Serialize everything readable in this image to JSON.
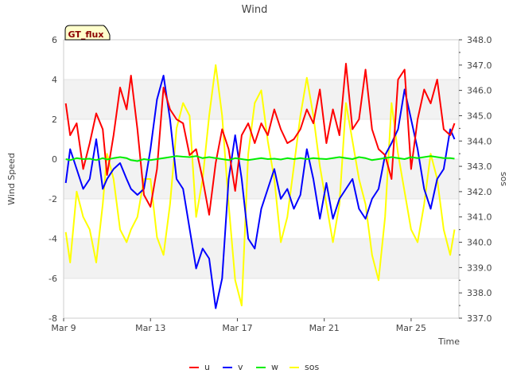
{
  "chart_data": {
    "type": "line",
    "title": "Wind",
    "xlabel": "Time",
    "ylabel": "Wind Speed",
    "y2label": "sos",
    "station_badge": "GT_flux",
    "x_ticks": [
      "Mar 9",
      "Mar 13",
      "Mar 17",
      "Mar 21",
      "Mar 25"
    ],
    "x_tick_days": [
      9,
      13,
      17,
      21,
      25
    ],
    "xlim_days": [
      9,
      27.2
    ],
    "ylim": [
      -8,
      6
    ],
    "y_ticks": [
      -8,
      -6,
      -4,
      -2,
      0,
      2,
      4,
      6
    ],
    "y2lim": [
      337.0,
      348.0
    ],
    "y2_ticks": [
      "337.0",
      "338.0",
      "339.0",
      "340.0",
      "341.0",
      "342.0",
      "343.0",
      "344.0",
      "345.0",
      "346.0",
      "347.0",
      "348.0"
    ],
    "legend_position": "bottom",
    "grid": "alternating horizontal bands",
    "series": [
      {
        "name": "u",
        "color": "#ff0000",
        "axis": "left",
        "x_days": [
          9.1,
          9.3,
          9.6,
          9.9,
          10.2,
          10.5,
          10.8,
          11.0,
          11.3,
          11.6,
          11.9,
          12.1,
          12.4,
          12.7,
          13.0,
          13.3,
          13.6,
          13.9,
          14.2,
          14.5,
          14.8,
          15.1,
          15.4,
          15.7,
          16.0,
          16.3,
          16.6,
          16.9,
          17.2,
          17.5,
          17.8,
          18.1,
          18.4,
          18.7,
          19.0,
          19.3,
          19.6,
          19.9,
          20.2,
          20.5,
          20.8,
          21.1,
          21.4,
          21.7,
          22.0,
          22.3,
          22.6,
          22.9,
          23.2,
          23.5,
          23.8,
          24.1,
          24.4,
          24.7,
          25.0,
          25.3,
          25.6,
          25.9,
          26.2,
          26.5,
          26.8,
          27.0
        ],
        "values": [
          2.8,
          1.2,
          1.8,
          -0.5,
          0.8,
          2.3,
          1.5,
          -0.8,
          1.2,
          3.6,
          2.5,
          4.2,
          1.5,
          -1.8,
          -2.4,
          -0.5,
          3.6,
          2.5,
          2.0,
          1.8,
          0.2,
          0.5,
          -1.0,
          -2.8,
          -0.2,
          1.5,
          0.5,
          -1.6,
          1.2,
          1.8,
          0.8,
          1.8,
          1.2,
          2.5,
          1.5,
          0.8,
          1.0,
          1.5,
          2.5,
          1.8,
          3.5,
          0.8,
          2.5,
          1.2,
          4.8,
          1.5,
          2.0,
          4.5,
          1.5,
          0.5,
          0.2,
          -1.0,
          4.0,
          4.5,
          -0.5,
          2.0,
          3.5,
          2.8,
          4.0,
          1.5,
          1.2,
          1.8
        ]
      },
      {
        "name": "v",
        "color": "#0000ff",
        "axis": "left",
        "x_days": [
          9.1,
          9.3,
          9.6,
          9.9,
          10.2,
          10.5,
          10.8,
          11.0,
          11.3,
          11.6,
          11.9,
          12.1,
          12.4,
          12.7,
          13.0,
          13.3,
          13.6,
          13.9,
          14.2,
          14.5,
          14.8,
          15.1,
          15.4,
          15.7,
          16.0,
          16.3,
          16.6,
          16.9,
          17.2,
          17.5,
          17.8,
          18.1,
          18.4,
          18.7,
          19.0,
          19.3,
          19.6,
          19.9,
          20.2,
          20.5,
          20.8,
          21.1,
          21.4,
          21.7,
          22.0,
          22.3,
          22.6,
          22.9,
          23.2,
          23.5,
          23.8,
          24.1,
          24.4,
          24.7,
          25.0,
          25.3,
          25.6,
          25.9,
          26.2,
          26.5,
          26.8,
          27.0
        ],
        "values": [
          -1.2,
          0.5,
          -0.5,
          -1.5,
          -1.0,
          1.0,
          -1.5,
          -1.0,
          -0.5,
          -0.2,
          -1.0,
          -1.5,
          -1.8,
          -1.5,
          0.5,
          3.0,
          4.2,
          2.0,
          -1.0,
          -1.5,
          -3.5,
          -5.5,
          -4.5,
          -5.0,
          -7.5,
          -6.0,
          -1.0,
          1.2,
          -1.0,
          -4.0,
          -4.5,
          -2.5,
          -1.5,
          -0.5,
          -2.0,
          -1.5,
          -2.5,
          -1.8,
          0.5,
          -1.0,
          -3.0,
          -1.2,
          -3.0,
          -2.0,
          -1.5,
          -1.0,
          -2.5,
          -3.0,
          -2.0,
          -1.5,
          0.2,
          0.8,
          1.5,
          3.5,
          2.0,
          0.5,
          -1.5,
          -2.5,
          -1.0,
          -0.5,
          1.5,
          1.0
        ]
      },
      {
        "name": "w",
        "color": "#00ee00",
        "axis": "left",
        "x_days": [
          9.1,
          9.3,
          9.6,
          9.9,
          10.2,
          10.5,
          10.8,
          11.0,
          11.3,
          11.6,
          11.9,
          12.1,
          12.4,
          12.7,
          13.0,
          13.3,
          13.6,
          13.9,
          14.2,
          14.5,
          14.8,
          15.1,
          15.4,
          15.7,
          16.0,
          16.3,
          16.6,
          16.9,
          17.2,
          17.5,
          17.8,
          18.1,
          18.4,
          18.7,
          19.0,
          19.3,
          19.6,
          19.9,
          20.2,
          20.5,
          20.8,
          21.1,
          21.4,
          21.7,
          22.0,
          22.3,
          22.6,
          22.9,
          23.2,
          23.5,
          23.8,
          24.1,
          24.4,
          24.7,
          25.0,
          25.3,
          25.6,
          25.9,
          26.2,
          26.5,
          26.8,
          27.0
        ],
        "values": [
          0.0,
          -0.05,
          0.05,
          0.0,
          0.02,
          -0.05,
          0.05,
          -0.02,
          0.05,
          0.1,
          0.05,
          -0.05,
          -0.1,
          0.0,
          -0.05,
          0.0,
          0.05,
          0.1,
          0.15,
          0.12,
          0.1,
          0.15,
          0.05,
          0.1,
          0.05,
          0.0,
          -0.05,
          0.05,
          0.0,
          -0.05,
          0.0,
          0.05,
          0.0,
          0.02,
          -0.02,
          0.05,
          0.0,
          0.05,
          0.0,
          0.05,
          0.02,
          0.0,
          0.05,
          0.1,
          0.05,
          0.0,
          0.1,
          0.05,
          -0.05,
          0.0,
          0.05,
          0.1,
          0.05,
          0.0,
          0.1,
          0.05,
          0.1,
          0.15,
          0.1,
          0.05,
          0.05,
          0.02
        ]
      },
      {
        "name": "sos",
        "color": "#ffff00",
        "axis": "right",
        "x_days": [
          9.1,
          9.3,
          9.6,
          9.9,
          10.2,
          10.5,
          10.8,
          11.0,
          11.3,
          11.6,
          11.9,
          12.1,
          12.4,
          12.7,
          13.0,
          13.3,
          13.6,
          13.9,
          14.2,
          14.5,
          14.8,
          15.1,
          15.4,
          15.7,
          16.0,
          16.3,
          16.6,
          16.9,
          17.2,
          17.5,
          17.8,
          18.1,
          18.4,
          18.7,
          19.0,
          19.3,
          19.6,
          19.9,
          20.2,
          20.5,
          20.8,
          21.1,
          21.4,
          21.7,
          22.0,
          22.3,
          22.6,
          22.9,
          23.2,
          23.5,
          23.8,
          24.1,
          24.4,
          24.7,
          25.0,
          25.3,
          25.6,
          25.9,
          26.2,
          26.5,
          26.8,
          27.0
        ],
        "values": [
          340.4,
          339.2,
          342.0,
          341.0,
          340.5,
          339.2,
          341.5,
          343.5,
          342.5,
          340.5,
          340.0,
          340.5,
          341.0,
          342.5,
          342.5,
          340.2,
          339.5,
          341.5,
          344.5,
          345.5,
          345.0,
          341.0,
          342.5,
          345.0,
          347.0,
          345.0,
          341.5,
          338.5,
          337.5,
          343.5,
          345.5,
          346.0,
          344.0,
          342.5,
          340.0,
          341.0,
          343.0,
          345.0,
          346.5,
          345.0,
          343.0,
          341.5,
          340.0,
          341.5,
          345.5,
          344.0,
          342.5,
          341.5,
          339.5,
          338.5,
          341.0,
          345.5,
          343.5,
          342.0,
          340.5,
          340.0,
          341.5,
          343.5,
          342.5,
          340.5,
          339.5,
          340.5
        ]
      }
    ]
  }
}
